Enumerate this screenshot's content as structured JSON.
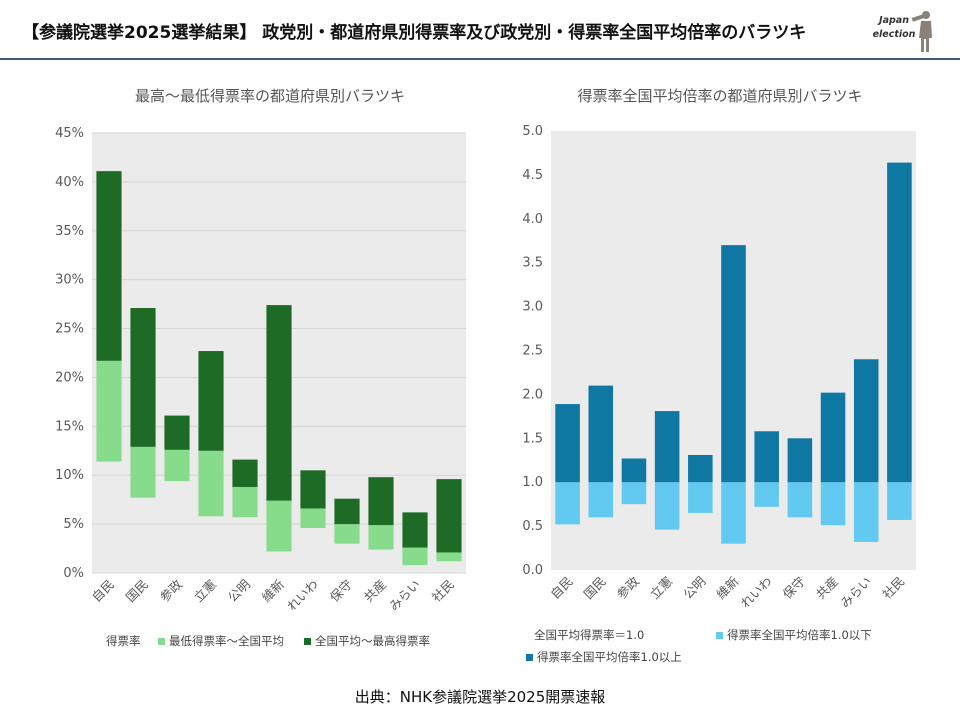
{
  "header": {
    "title": "【参議院選挙2025選挙結果】 政党別・都道府県別得票率及び政党別・得票率全国平均倍率のバラツキ",
    "logo_line1": "Japan",
    "logo_line2": "election"
  },
  "source": "出典：NHK参議院選挙2025開票速報",
  "colors": {
    "light_green": "#86dc8a",
    "dark_green": "#1e6b26",
    "light_blue": "#62c9f0",
    "dark_blue": "#0e77a2",
    "plot_bg": "#ebebeb"
  },
  "chart_data": [
    {
      "type": "bar",
      "stacked": "floating",
      "title": "最高～最低得票率の都道府県別バラツキ",
      "categories": [
        "自民",
        "国民",
        "参政",
        "立憲",
        "公明",
        "維新",
        "れいわ",
        "保守",
        "共産",
        "みらい",
        "社民"
      ],
      "series": [
        {
          "name": "最低得票率～全国平均",
          "low": [
            11.4,
            7.7,
            9.4,
            5.8,
            5.7,
            2.2,
            4.6,
            3.0,
            2.4,
            0.8,
            1.2
          ],
          "high": [
            21.7,
            12.9,
            12.6,
            12.5,
            8.8,
            7.4,
            6.6,
            5.0,
            4.9,
            2.6,
            2.1
          ]
        },
        {
          "name": "全国平均～最高得票率",
          "low": [
            21.7,
            12.9,
            12.6,
            12.5,
            8.8,
            7.4,
            6.6,
            5.0,
            4.9,
            2.6,
            2.1
          ],
          "high": [
            41.1,
            27.1,
            16.1,
            22.7,
            11.6,
            27.4,
            10.5,
            7.6,
            9.8,
            6.2,
            9.6
          ]
        }
      ],
      "legend_title": "得票率",
      "ylim": [
        0,
        45
      ],
      "yticks": [
        "0%",
        "5%",
        "10%",
        "15%",
        "20%",
        "25%",
        "30%",
        "35%",
        "40%",
        "45%"
      ],
      "grid": true
    },
    {
      "type": "bar",
      "stacked": "floating",
      "title": "得票率全国平均倍率の都道府県別バラツキ",
      "categories": [
        "自民",
        "国民",
        "参政",
        "立憲",
        "公明",
        "維新",
        "れいわ",
        "保守",
        "共産",
        "みらい",
        "社民"
      ],
      "series": [
        {
          "name": "得票率全国平均倍率1.0以下",
          "low": [
            0.52,
            0.6,
            0.75,
            0.46,
            0.65,
            0.3,
            0.72,
            0.6,
            0.51,
            0.32,
            0.57
          ],
          "high": [
            1.0,
            1.0,
            1.0,
            1.0,
            1.0,
            1.0,
            1.0,
            1.0,
            1.0,
            1.0,
            1.0
          ]
        },
        {
          "name": "得票率全国平均倍率1.0以上",
          "low": [
            1.0,
            1.0,
            1.0,
            1.0,
            1.0,
            1.0,
            1.0,
            1.0,
            1.0,
            1.0,
            1.0
          ],
          "high": [
            1.89,
            2.1,
            1.27,
            1.81,
            1.31,
            3.7,
            1.58,
            1.5,
            2.02,
            2.4,
            4.64
          ]
        }
      ],
      "legend_title": "全国平均得票率＝1.0",
      "ylim": [
        0,
        5
      ],
      "yticks": [
        "0.0",
        "0.5",
        "1.0",
        "1.5",
        "2.0",
        "2.5",
        "3.0",
        "3.5",
        "4.0",
        "4.5",
        "5.0"
      ],
      "grid": false
    }
  ]
}
